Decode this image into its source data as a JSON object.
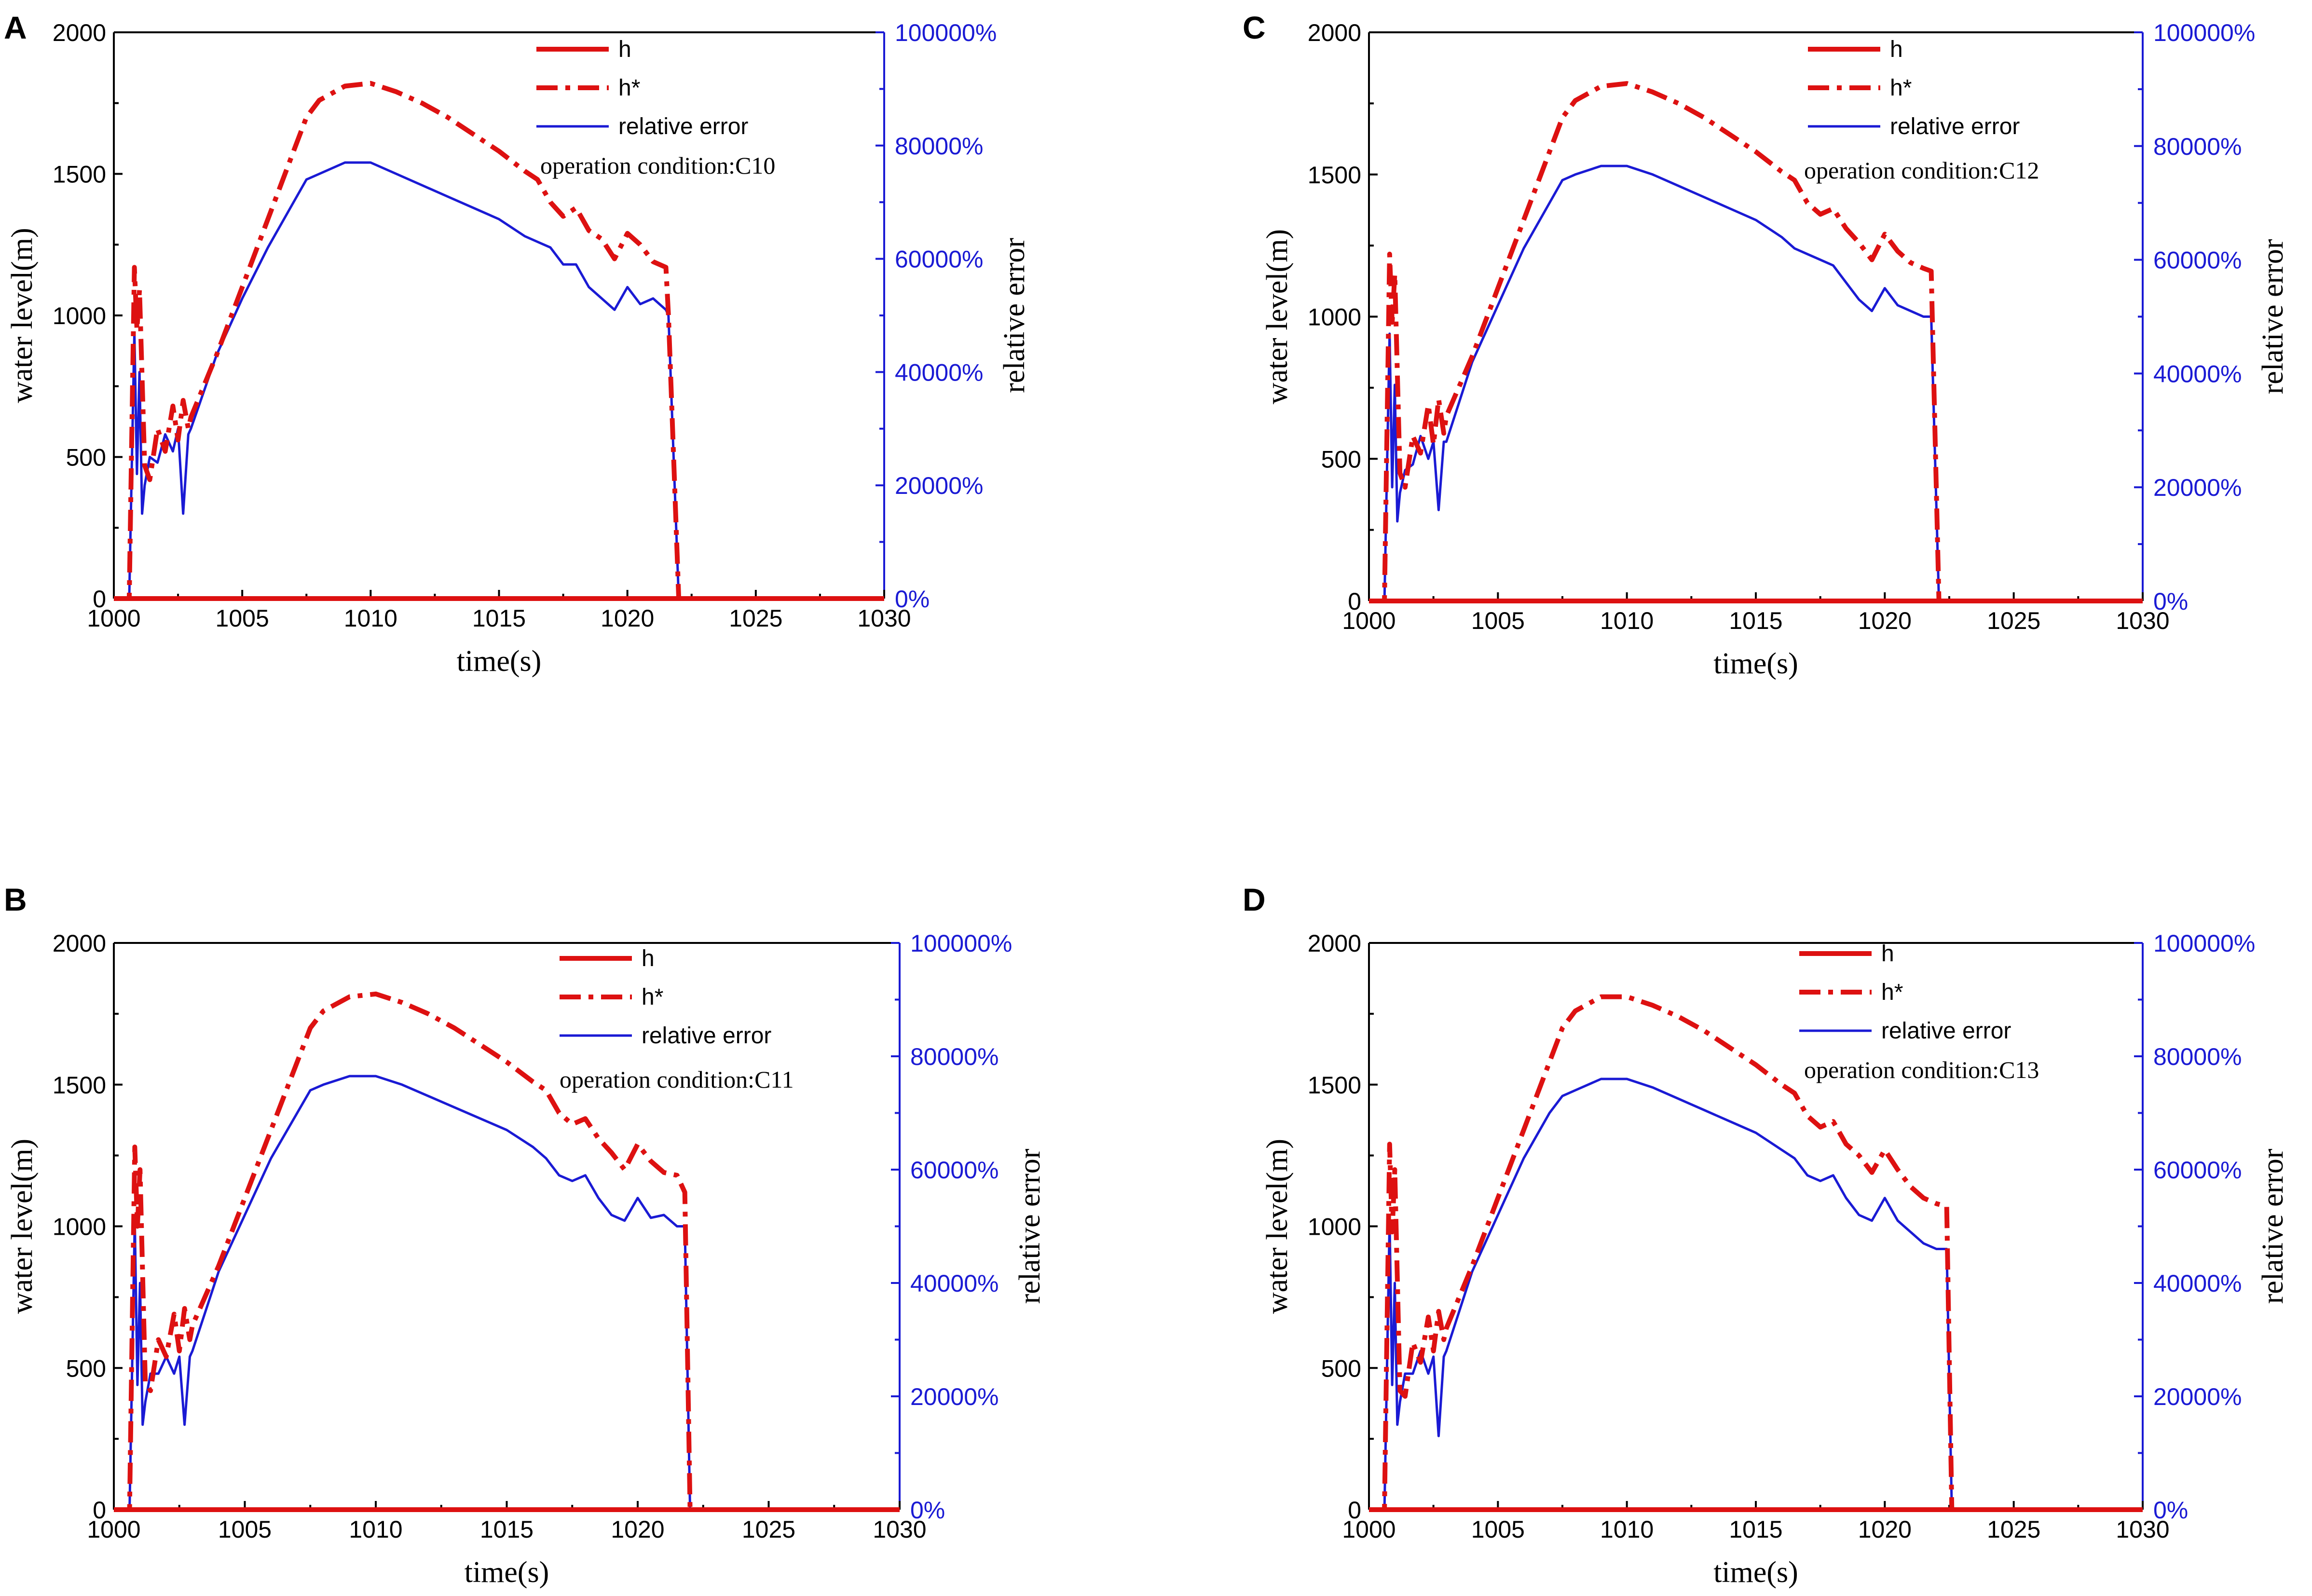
{
  "colors": {
    "h": "#dd1111",
    "h_star": "#dd1111",
    "relative_error": "#1a1ad4",
    "axis": "#000000",
    "right_axis": "#1a1ad4"
  },
  "chart_data": [
    {
      "panel": "A",
      "type": "line",
      "condition": "operation condition:C10",
      "xlabel": "time(s)",
      "ylabel": "water level(m)",
      "y2label": "relative error",
      "xlim": [
        1000,
        1030
      ],
      "ylim": [
        0,
        2000
      ],
      "y2lim": [
        0,
        100000
      ],
      "xticks": [
        "1000",
        "1005",
        "1010",
        "1015",
        "1020",
        "1025",
        "1030"
      ],
      "yticks": [
        "0",
        "500",
        "1000",
        "1500",
        "2000"
      ],
      "y2ticks": [
        "0%",
        "20000%",
        "40000%",
        "60000%",
        "80000%",
        "100000%"
      ],
      "legend": [
        "h",
        "h*",
        "relative error"
      ],
      "series": [
        {
          "name": "h",
          "axis": "left",
          "x": [
            1000,
            1030
          ],
          "y": [
            0,
            0
          ]
        },
        {
          "name": "h*",
          "axis": "left",
          "x": [
            1000,
            1000.6,
            1000.8,
            1000.9,
            1001.0,
            1001.2,
            1001.4,
            1001.7,
            1002.0,
            1002.3,
            1002.5,
            1002.7,
            1002.9,
            1003.0,
            1004,
            1005,
            1006,
            1007,
            1007.5,
            1008,
            1009,
            1010,
            1011,
            1012,
            1013,
            1014,
            1015,
            1016,
            1016.5,
            1017,
            1017.5,
            1018,
            1018.5,
            1019,
            1019.5,
            1020,
            1020.5,
            1021,
            1021.5,
            1021.6,
            1022,
            1030
          ],
          "y": [
            0,
            0,
            1170,
            950,
            1090,
            470,
            420,
            600,
            520,
            680,
            560,
            700,
            600,
            640,
            860,
            1100,
            1340,
            1580,
            1700,
            1760,
            1810,
            1820,
            1790,
            1750,
            1700,
            1640,
            1580,
            1510,
            1480,
            1400,
            1350,
            1380,
            1300,
            1270,
            1200,
            1290,
            1250,
            1190,
            1170,
            1000,
            0,
            0
          ]
        },
        {
          "name": "relative error",
          "axis": "right",
          "x": [
            1000,
            1000.6,
            1000.8,
            1000.9,
            1001.0,
            1001.1,
            1001.2,
            1001.4,
            1001.7,
            1002.0,
            1002.3,
            1002.5,
            1002.7,
            1002.9,
            1003.0,
            1004,
            1005,
            1006,
            1007,
            1007.5,
            1008,
            1009,
            1010,
            1011,
            1012,
            1013,
            1014,
            1015,
            1016,
            1016.5,
            1017,
            1017.5,
            1018,
            1018.5,
            1019,
            1019.5,
            1020,
            1020.5,
            1021,
            1021.5,
            1021.6,
            1022,
            1030
          ],
          "y": [
            0,
            0,
            47000,
            22000,
            40000,
            15000,
            20000,
            25000,
            24000,
            29000,
            26000,
            30000,
            15000,
            29000,
            30000,
            43000,
            53000,
            62000,
            70000,
            74000,
            75000,
            77000,
            77000,
            75000,
            73000,
            71000,
            69000,
            67000,
            64000,
            63000,
            62000,
            59000,
            59000,
            55000,
            53000,
            51000,
            55000,
            52000,
            53000,
            51000,
            50000,
            0,
            0
          ]
        }
      ]
    },
    {
      "panel": "C",
      "type": "line",
      "condition": "operation condition:C12",
      "xlabel": "time(s)",
      "ylabel": "water level(m)",
      "y2label": "relative error",
      "xlim": [
        1000,
        1030
      ],
      "ylim": [
        0,
        2000
      ],
      "y2lim": [
        0,
        100000
      ],
      "xticks": [
        "1000",
        "1005",
        "1010",
        "1015",
        "1020",
        "1025",
        "1030"
      ],
      "yticks": [
        "0",
        "500",
        "1000",
        "1500",
        "2000"
      ],
      "y2ticks": [
        "0%",
        "20000%",
        "40000%",
        "60000%",
        "80000%",
        "100000%"
      ],
      "legend": [
        "h",
        "h*",
        "relative error"
      ],
      "series": [
        {
          "name": "h",
          "axis": "left",
          "x": [
            1000,
            1030
          ],
          "y": [
            0,
            0
          ]
        },
        {
          "name": "h*",
          "axis": "left",
          "x": [
            1000,
            1000.6,
            1000.8,
            1000.9,
            1001.0,
            1001.2,
            1001.4,
            1001.7,
            1002.0,
            1002.3,
            1002.5,
            1002.7,
            1002.9,
            1003.0,
            1004,
            1005,
            1006,
            1007,
            1007.5,
            1008,
            1009,
            1010,
            1011,
            1012,
            1013,
            1014,
            1015,
            1016,
            1016.5,
            1017,
            1017.5,
            1018,
            1018.5,
            1019,
            1019.5,
            1020,
            1020.5,
            1021,
            1021.5,
            1021.8,
            1022.1,
            1030
          ],
          "y": [
            0,
            0,
            1220,
            980,
            1150,
            450,
            400,
            580,
            520,
            690,
            550,
            710,
            590,
            650,
            860,
            1100,
            1340,
            1580,
            1700,
            1760,
            1810,
            1820,
            1790,
            1750,
            1700,
            1640,
            1580,
            1510,
            1480,
            1400,
            1360,
            1380,
            1310,
            1260,
            1200,
            1290,
            1230,
            1190,
            1170,
            1160,
            0,
            0
          ]
        },
        {
          "name": "relative error",
          "axis": "right",
          "x": [
            1000,
            1000.6,
            1000.8,
            1000.9,
            1001.0,
            1001.1,
            1001.2,
            1001.4,
            1001.7,
            1002.0,
            1002.3,
            1002.5,
            1002.7,
            1002.9,
            1003.0,
            1004,
            1005,
            1006,
            1007,
            1007.5,
            1008,
            1009,
            1010,
            1011,
            1012,
            1013,
            1014,
            1015,
            1016,
            1016.5,
            1017,
            1017.5,
            1018,
            1018.5,
            1019,
            1019.5,
            1020,
            1020.5,
            1021,
            1021.5,
            1021.8,
            1022.1,
            1030
          ],
          "y": [
            0,
            0,
            47000,
            20000,
            38000,
            14000,
            19000,
            23000,
            24000,
            29000,
            25000,
            28000,
            16000,
            28000,
            28000,
            42000,
            52000,
            62000,
            70000,
            74000,
            75000,
            76500,
            76500,
            75000,
            73000,
            71000,
            69000,
            67000,
            64000,
            62000,
            61000,
            60000,
            59000,
            56000,
            53000,
            51000,
            55000,
            52000,
            51000,
            50000,
            50000,
            0,
            0
          ]
        }
      ]
    },
    {
      "panel": "B",
      "type": "line",
      "condition": "operation condition:C11",
      "xlabel": "time(s)",
      "ylabel": "water level(m)",
      "y2label": "relative error",
      "xlim": [
        1000,
        1030
      ],
      "ylim": [
        0,
        2000
      ],
      "y2lim": [
        0,
        100000
      ],
      "xticks": [
        "1000",
        "1005",
        "1010",
        "1015",
        "1020",
        "1025",
        "1030"
      ],
      "yticks": [
        "0",
        "500",
        "1000",
        "1500",
        "2000"
      ],
      "y2ticks": [
        "0%",
        "20000%",
        "40000%",
        "60000%",
        "80000%",
        "100000%"
      ],
      "legend": [
        "h",
        "h*",
        "relative error"
      ],
      "series": [
        {
          "name": "h",
          "axis": "left",
          "x": [
            1000,
            1030
          ],
          "y": [
            0,
            0
          ]
        },
        {
          "name": "h*",
          "axis": "left",
          "x": [
            1000,
            1000.6,
            1000.8,
            1000.9,
            1001.0,
            1001.2,
            1001.4,
            1001.7,
            1002.0,
            1002.3,
            1002.5,
            1002.7,
            1002.9,
            1003.0,
            1004,
            1005,
            1006,
            1007,
            1007.5,
            1008,
            1009,
            1010,
            1011,
            1012,
            1013,
            1014,
            1015,
            1016,
            1016.5,
            1017,
            1017.5,
            1018,
            1018.5,
            1019,
            1019.5,
            1020,
            1020.5,
            1021,
            1021.5,
            1021.8,
            1022.0,
            1030
          ],
          "y": [
            0,
            0,
            1280,
            1000,
            1200,
            450,
            420,
            600,
            540,
            690,
            560,
            710,
            600,
            650,
            860,
            1100,
            1340,
            1580,
            1700,
            1760,
            1810,
            1820,
            1790,
            1750,
            1700,
            1640,
            1580,
            1510,
            1480,
            1400,
            1360,
            1380,
            1310,
            1260,
            1200,
            1290,
            1230,
            1190,
            1180,
            1120,
            0,
            0
          ]
        },
        {
          "name": "relative error",
          "axis": "right",
          "x": [
            1000,
            1000.6,
            1000.8,
            1000.9,
            1001.0,
            1001.1,
            1001.2,
            1001.4,
            1001.7,
            1002.0,
            1002.3,
            1002.5,
            1002.7,
            1002.9,
            1003.0,
            1004,
            1005,
            1006,
            1007,
            1007.5,
            1008,
            1009,
            1010,
            1011,
            1012,
            1013,
            1014,
            1015,
            1016,
            1016.5,
            1017,
            1017.5,
            1018,
            1018.5,
            1019,
            1019.5,
            1020,
            1020.5,
            1021,
            1021.5,
            1021.8,
            1022.0,
            1030
          ],
          "y": [
            0,
            0,
            51000,
            22000,
            40000,
            15000,
            19000,
            24000,
            24000,
            27000,
            24000,
            27000,
            15000,
            27000,
            28000,
            42000,
            52000,
            62000,
            70000,
            74000,
            75000,
            76500,
            76500,
            75000,
            73000,
            71000,
            69000,
            67000,
            64000,
            62000,
            59000,
            58000,
            59000,
            55000,
            52000,
            51000,
            55000,
            51500,
            52000,
            50000,
            50000,
            0,
            0
          ]
        }
      ]
    },
    {
      "panel": "D",
      "type": "line",
      "condition": "operation condition:C13",
      "xlabel": "time(s)",
      "ylabel": "water level(m)",
      "y2label": "relative error",
      "xlim": [
        1000,
        1030
      ],
      "ylim": [
        0,
        2000
      ],
      "y2lim": [
        0,
        100000
      ],
      "xticks": [
        "1000",
        "1005",
        "1010",
        "1015",
        "1020",
        "1025",
        "1030"
      ],
      "yticks": [
        "0",
        "500",
        "1000",
        "1500",
        "2000"
      ],
      "y2ticks": [
        "0%",
        "20000%",
        "40000%",
        "60000%",
        "80000%",
        "100000%"
      ],
      "legend": [
        "h",
        "h*",
        "relative error"
      ],
      "series": [
        {
          "name": "h",
          "axis": "left",
          "x": [
            1000,
            1030
          ],
          "y": [
            0,
            0
          ]
        },
        {
          "name": "h*",
          "axis": "left",
          "x": [
            1000,
            1000.6,
            1000.8,
            1000.9,
            1001.0,
            1001.2,
            1001.4,
            1001.7,
            1002.0,
            1002.3,
            1002.5,
            1002.7,
            1002.9,
            1003.0,
            1004,
            1005,
            1006,
            1007,
            1007.5,
            1008,
            1009,
            1010,
            1011,
            1012,
            1013,
            1014,
            1015,
            1016,
            1016.5,
            1017,
            1017.5,
            1018,
            1018.5,
            1019,
            1019.5,
            1020,
            1020.5,
            1021,
            1021.5,
            1022.0,
            1022.4,
            1022.6,
            1030
          ],
          "y": [
            0,
            0,
            1290,
            980,
            1200,
            420,
            400,
            590,
            520,
            680,
            560,
            700,
            600,
            640,
            860,
            1100,
            1340,
            1580,
            1700,
            1760,
            1810,
            1810,
            1780,
            1740,
            1690,
            1630,
            1570,
            1500,
            1470,
            1390,
            1350,
            1370,
            1290,
            1250,
            1190,
            1270,
            1200,
            1140,
            1100,
            1080,
            1070,
            0,
            0
          ]
        },
        {
          "name": "relative error",
          "axis": "right",
          "x": [
            1000,
            1000.6,
            1000.8,
            1000.9,
            1001.0,
            1001.1,
            1001.2,
            1001.4,
            1001.7,
            1002.0,
            1002.3,
            1002.5,
            1002.7,
            1002.9,
            1003.0,
            1004,
            1005,
            1006,
            1007,
            1007.5,
            1008,
            1009,
            1010,
            1011,
            1012,
            1013,
            1014,
            1015,
            1016,
            1016.5,
            1017,
            1017.5,
            1018,
            1018.5,
            1019,
            1019.5,
            1020,
            1020.5,
            1021,
            1021.5,
            1022.0,
            1022.4,
            1022.6,
            1030
          ],
          "y": [
            0,
            0,
            51000,
            22000,
            40000,
            15000,
            19000,
            24000,
            24000,
            28000,
            24000,
            27000,
            13000,
            27000,
            28000,
            42000,
            52000,
            62000,
            70000,
            73000,
            74000,
            76000,
            76000,
            74500,
            72500,
            70500,
            68500,
            66500,
            63500,
            62000,
            59000,
            58000,
            59000,
            55000,
            52000,
            51000,
            55000,
            51000,
            49000,
            47000,
            46000,
            46000,
            0,
            0
          ]
        }
      ]
    }
  ]
}
